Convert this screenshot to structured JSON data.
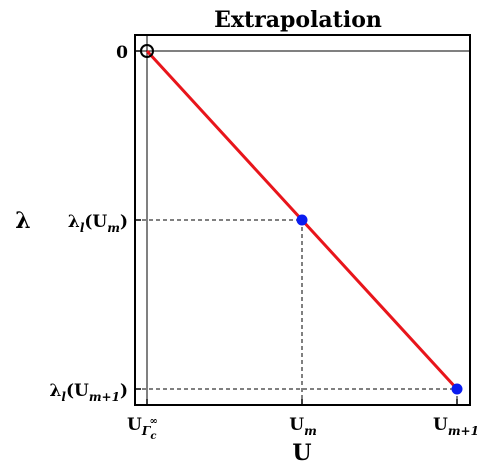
{
  "chart_data": {
    "type": "line",
    "title": "Extrapolation",
    "xlabel": "U",
    "ylabel": "λ",
    "x_ticks": [
      {
        "base": "U",
        "sub": "Γ",
        "subsub": "c",
        "sup": "∞"
      },
      {
        "base": "U",
        "sub": "m"
      },
      {
        "base": "U",
        "sub": "m+1"
      }
    ],
    "y_ticks": [
      {
        "text": "0"
      },
      {
        "prefix": "λ",
        "prefix_sub": "l",
        "paren_open": "(",
        "base": "U",
        "sub": "m",
        "paren_close": ")"
      },
      {
        "prefix": "λ",
        "prefix_sub": "l",
        "paren_open": "(",
        "base": "U",
        "sub": "m+1",
        "paren_close": ")"
      }
    ],
    "line": {
      "from": [
        0,
        0
      ],
      "to": [
        2,
        -2
      ],
      "color": "#e8151b"
    },
    "points": [
      {
        "x": 0,
        "y": 0,
        "style": "open",
        "color": "#000000"
      },
      {
        "x": 1,
        "y": -1,
        "style": "filled",
        "color": "#0a1cf0"
      },
      {
        "x": 2,
        "y": -2,
        "style": "filled",
        "color": "#0a1cf0"
      }
    ],
    "guides": "dashed"
  }
}
